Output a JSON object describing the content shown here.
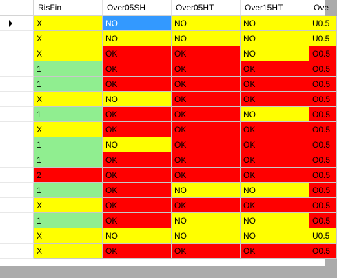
{
  "columns": [
    "RisFin",
    "Over05SH",
    "Over05HT",
    "Over15HT",
    "Ove"
  ],
  "colors": {
    "yellow": "#ffff00",
    "red": "#ff0000",
    "green": "#90ee90",
    "selected": "#3399ff"
  },
  "current_row": 0,
  "rows": [
    {
      "cells": [
        "X",
        "NO",
        "NO",
        "NO",
        "U0.5"
      ],
      "colors": [
        "yellow",
        "selected",
        "yellow",
        "yellow",
        "yellow"
      ]
    },
    {
      "cells": [
        "X",
        "NO",
        "NO",
        "NO",
        "U0.5"
      ],
      "colors": [
        "yellow",
        "yellow",
        "yellow",
        "yellow",
        "yellow"
      ]
    },
    {
      "cells": [
        "X",
        "OK",
        "OK",
        "NO",
        "O0.5"
      ],
      "colors": [
        "yellow",
        "red",
        "red",
        "yellow",
        "red"
      ]
    },
    {
      "cells": [
        "1",
        "OK",
        "OK",
        "OK",
        "O0.5"
      ],
      "colors": [
        "green",
        "red",
        "red",
        "red",
        "red"
      ]
    },
    {
      "cells": [
        "1",
        "OK",
        "OK",
        "OK",
        "O0.5"
      ],
      "colors": [
        "green",
        "red",
        "red",
        "red",
        "red"
      ]
    },
    {
      "cells": [
        "X",
        "NO",
        "OK",
        "OK",
        "O0.5"
      ],
      "colors": [
        "yellow",
        "yellow",
        "red",
        "red",
        "red"
      ]
    },
    {
      "cells": [
        "1",
        "OK",
        "OK",
        "NO",
        "O0.5"
      ],
      "colors": [
        "green",
        "red",
        "red",
        "yellow",
        "red"
      ]
    },
    {
      "cells": [
        "X",
        "OK",
        "OK",
        "OK",
        "O0.5"
      ],
      "colors": [
        "yellow",
        "red",
        "red",
        "red",
        "red"
      ]
    },
    {
      "cells": [
        "1",
        "NO",
        "OK",
        "OK",
        "O0.5"
      ],
      "colors": [
        "green",
        "yellow",
        "red",
        "red",
        "red"
      ]
    },
    {
      "cells": [
        "1",
        "OK",
        "OK",
        "OK",
        "O0.5"
      ],
      "colors": [
        "green",
        "red",
        "red",
        "red",
        "red"
      ]
    },
    {
      "cells": [
        "2",
        "OK",
        "OK",
        "OK",
        "O0.5"
      ],
      "colors": [
        "red",
        "red",
        "red",
        "red",
        "red"
      ]
    },
    {
      "cells": [
        "1",
        "OK",
        "NO",
        "NO",
        "O0.5"
      ],
      "colors": [
        "green",
        "red",
        "yellow",
        "yellow",
        "red"
      ]
    },
    {
      "cells": [
        "X",
        "OK",
        "OK",
        "OK",
        "O0.5"
      ],
      "colors": [
        "yellow",
        "red",
        "red",
        "red",
        "red"
      ]
    },
    {
      "cells": [
        "1",
        "OK",
        "NO",
        "NO",
        "O0.5"
      ],
      "colors": [
        "green",
        "red",
        "yellow",
        "yellow",
        "red"
      ]
    },
    {
      "cells": [
        "X",
        "NO",
        "NO",
        "NO",
        "U0.5"
      ],
      "colors": [
        "yellow",
        "yellow",
        "yellow",
        "yellow",
        "yellow"
      ]
    },
    {
      "cells": [
        "X",
        "OK",
        "OK",
        "OK",
        "O0.5"
      ],
      "colors": [
        "yellow",
        "red",
        "red",
        "red",
        "red"
      ]
    }
  ]
}
